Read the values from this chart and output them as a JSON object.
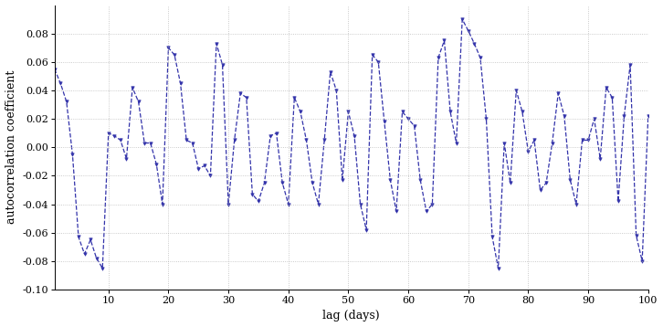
{
  "lags": [
    1,
    2,
    3,
    4,
    5,
    6,
    7,
    8,
    9,
    10,
    11,
    12,
    13,
    14,
    15,
    16,
    17,
    18,
    19,
    20,
    21,
    22,
    23,
    24,
    25,
    26,
    27,
    28,
    29,
    30,
    31,
    32,
    33,
    34,
    35,
    36,
    37,
    38,
    39,
    40,
    41,
    42,
    43,
    44,
    45,
    46,
    47,
    48,
    49,
    50,
    51,
    52,
    53,
    54,
    55,
    56,
    57,
    58,
    59,
    60,
    61,
    62,
    63,
    64,
    65,
    66,
    67,
    68,
    69,
    70,
    71,
    72,
    73,
    74,
    75,
    76,
    77,
    78,
    79,
    80,
    81,
    82,
    83,
    84,
    85,
    86,
    87,
    88,
    89,
    90,
    91,
    92,
    93,
    94,
    95,
    96,
    97,
    98,
    99,
    100
  ],
  "acf": [
    0.055,
    0.045,
    0.032,
    -0.005,
    -0.063,
    -0.075,
    -0.065,
    -0.078,
    -0.085,
    0.01,
    0.008,
    0.005,
    -0.008,
    0.042,
    0.032,
    0.003,
    0.003,
    -0.012,
    -0.04,
    0.07,
    0.065,
    0.045,
    0.005,
    0.003,
    -0.015,
    -0.013,
    -0.02,
    0.073,
    0.058,
    -0.04,
    0.005,
    0.038,
    0.035,
    -0.033,
    -0.038,
    -0.025,
    0.008,
    0.01,
    -0.025,
    -0.04,
    0.035,
    0.025,
    0.005,
    -0.025,
    -0.04,
    0.005,
    0.053,
    0.04,
    -0.023,
    0.025,
    0.008,
    -0.04,
    -0.058,
    0.065,
    0.06,
    0.018,
    -0.023,
    -0.045,
    0.025,
    0.02,
    0.015,
    -0.023,
    -0.045,
    -0.04,
    0.063,
    0.075,
    0.025,
    0.003,
    0.09,
    0.082,
    0.073,
    0.063,
    0.02,
    -0.063,
    -0.085,
    0.003,
    -0.025,
    0.04,
    0.025,
    -0.003,
    0.005,
    -0.03,
    -0.025,
    0.003,
    0.038,
    0.022,
    -0.023,
    -0.04,
    0.005,
    0.005,
    0.02,
    -0.008,
    0.042,
    0.035,
    -0.038,
    0.022,
    0.058,
    -0.062,
    -0.08,
    0.022
  ],
  "line_color": "#3333aa",
  "marker": "v",
  "marker_size": 2.5,
  "linewidth": 0.9,
  "linestyle": "--",
  "xlabel": "lag (days)",
  "ylabel": "autocorrelation coefficient",
  "xlim": [
    1,
    100
  ],
  "ylim": [
    -0.1,
    0.1
  ],
  "xticks": [
    10,
    20,
    30,
    40,
    50,
    60,
    70,
    80,
    90,
    100
  ],
  "yticks": [
    -0.1,
    -0.08,
    -0.06,
    -0.04,
    -0.02,
    0.0,
    0.02,
    0.04,
    0.06,
    0.08
  ],
  "grid_color": "#aaaaaa",
  "grid_linestyle": ":",
  "bg_color": "#ffffff",
  "fig_bg_color": "#ffffff"
}
